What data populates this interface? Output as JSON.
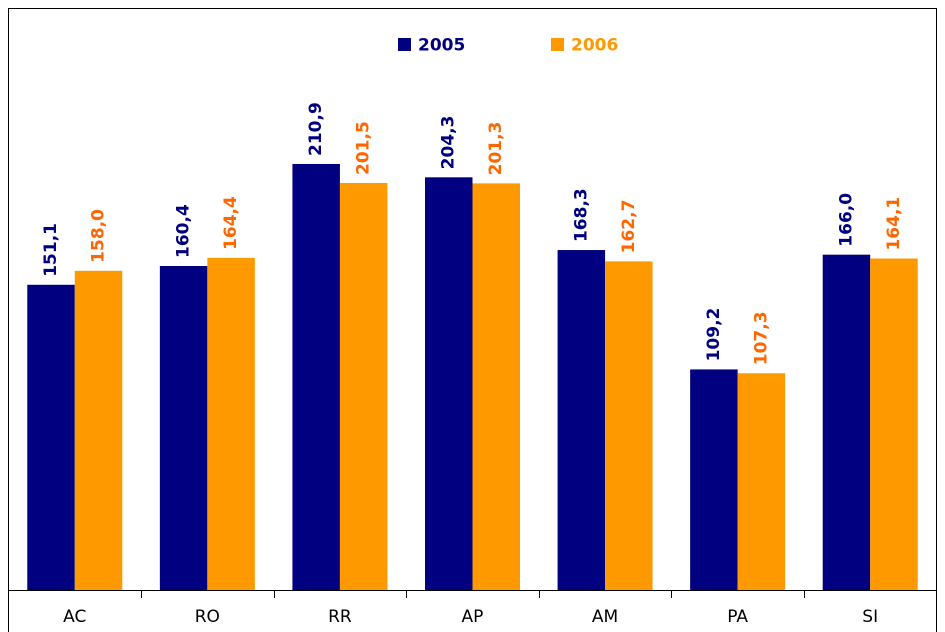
{
  "chart_data": {
    "type": "bar",
    "categories": [
      "AC",
      "RO",
      "RR",
      "AP",
      "AM",
      "PA",
      "SI"
    ],
    "series": [
      {
        "name": "2005",
        "color": "#000080",
        "values": [
          151.1,
          160.4,
          210.9,
          204.3,
          168.3,
          109.2,
          166.0
        ],
        "value_labels": [
          "151,1",
          "160,4",
          "210,9",
          "204,3",
          "168,3",
          "109,2",
          "166,0"
        ]
      },
      {
        "name": "2006",
        "color": "#ff9900",
        "values": [
          158.0,
          164.4,
          201.5,
          201.3,
          162.7,
          107.3,
          164.1
        ],
        "value_labels": [
          "158,0",
          "164,4",
          "201,5",
          "201,3",
          "162,7",
          "107,3",
          "164,1"
        ]
      }
    ],
    "ylim": [
      0,
      250
    ],
    "legend": "top"
  }
}
